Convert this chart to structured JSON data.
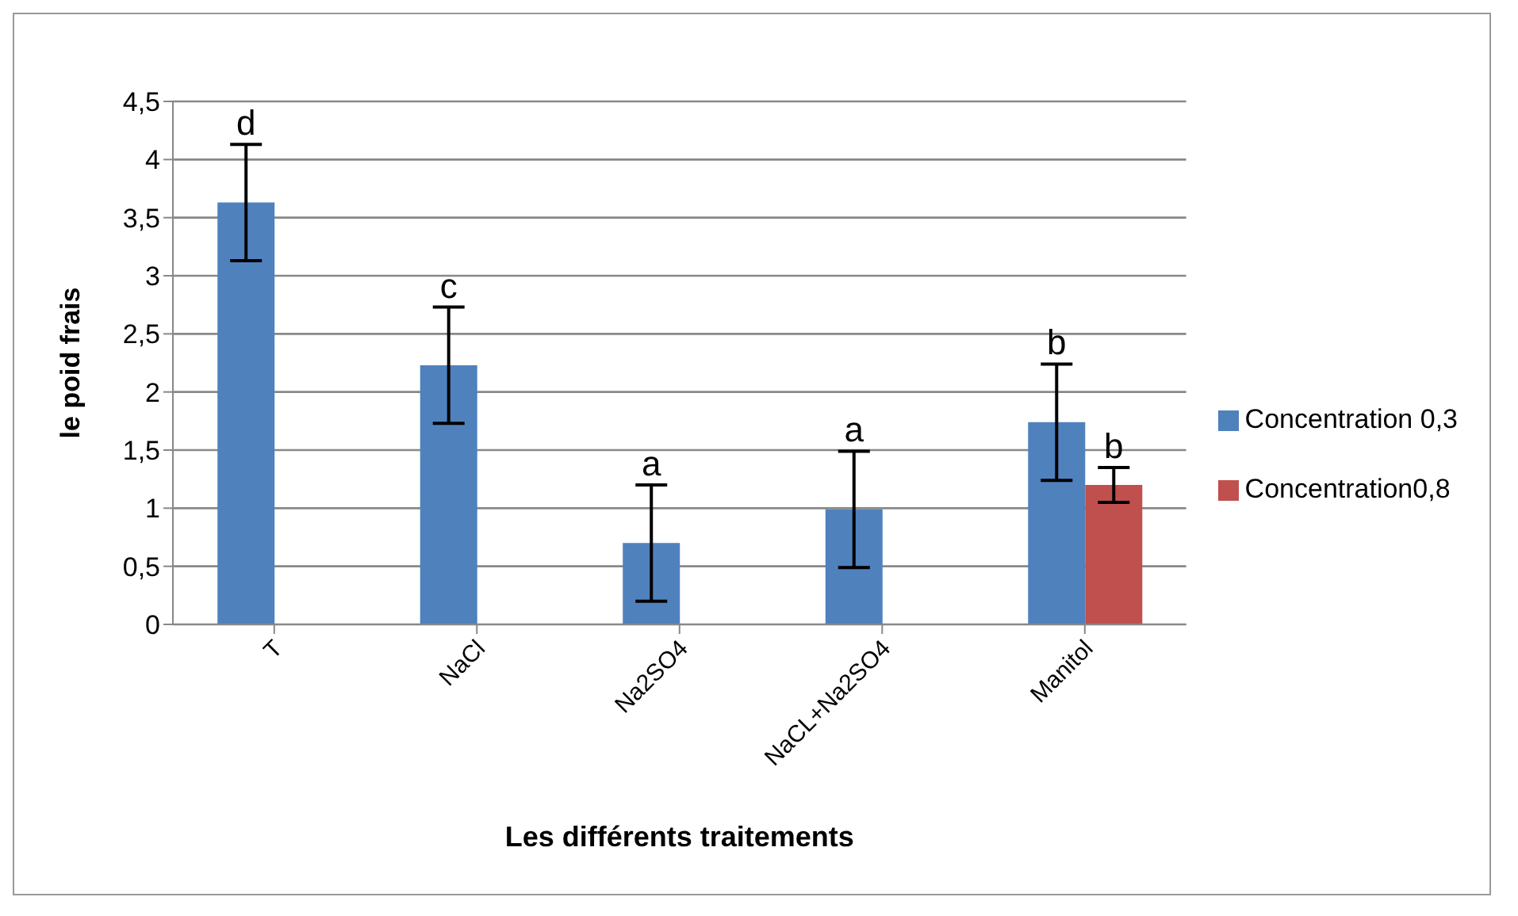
{
  "chart_data": {
    "type": "bar",
    "xlabel": "Les différents traitements",
    "ylabel": "le poid frais",
    "categories": [
      "T",
      "NaCl",
      "Na2SO4",
      "NaCL+Na2SO4",
      "Manitol"
    ],
    "series": [
      {
        "name": "Concentration 0,3",
        "color": "#4f81bd",
        "values": [
          3.63,
          2.23,
          0.7,
          0.99,
          1.74
        ],
        "errors": [
          0.5,
          0.5,
          0.5,
          0.5,
          0.5
        ],
        "value_labels": [
          "d",
          "c",
          "a",
          "a",
          "b"
        ]
      },
      {
        "name": "Concentration0,8",
        "color": "#c0504d",
        "values": [
          null,
          0,
          0,
          0,
          1.2
        ],
        "errors": [
          null,
          null,
          null,
          null,
          0.15
        ],
        "value_labels": [
          null,
          null,
          null,
          null,
          "b"
        ]
      }
    ],
    "ylim": [
      0,
      4.5
    ],
    "yticks": [
      0,
      {
        "value": 0.5,
        "label": "0,5"
      },
      1,
      {
        "value": 1.5,
        "label": "1,5"
      },
      2,
      {
        "value": 2.5,
        "label": "2,5"
      },
      3,
      {
        "value": 3.5,
        "label": "3,5"
      },
      4,
      {
        "value": 4.5,
        "label": "4,5"
      }
    ],
    "grid": "y",
    "legend": "right"
  }
}
